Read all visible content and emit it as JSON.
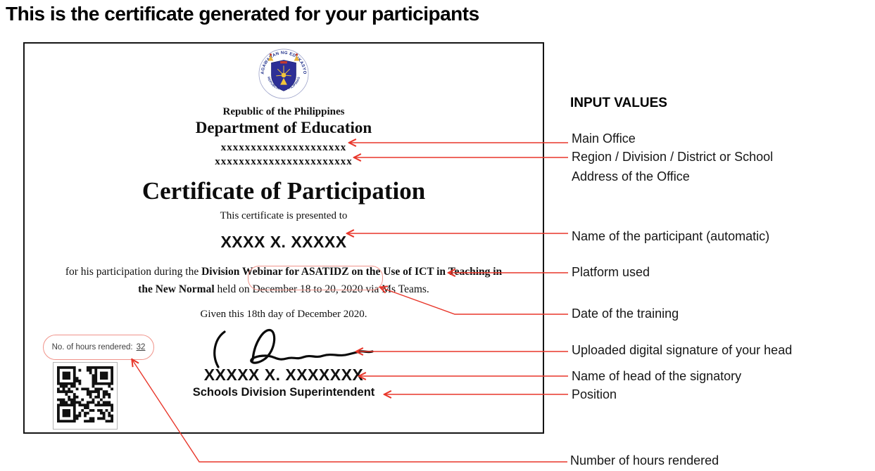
{
  "page": {
    "heading": "This is the certificate generated for your participants"
  },
  "certificate": {
    "seal": {
      "top_text": "KAGAWARAN NG EDUKASYON",
      "bottom_text": "REPUBLIKA NG PILIPINAS"
    },
    "republic_line": "Republic of the Philippines",
    "department_line": "Department of Education",
    "office_placeholder": "xxxxxxxxxxxxxxxxxxxxx",
    "region_placeholder": "xxxxxxxxxxxxxxxxxxxxxxx",
    "title": "Certificate of Participation",
    "presented_line": "This certificate is presented to",
    "participant_name": "XXXX X. XXXXX",
    "body": {
      "line1_normal": "for his participation during the ",
      "line1_bold": "Division Webinar for ASATIDZ on the Use of ICT in Teaching in",
      "line2_bold": "the New Normal",
      "line2_mid": " held on ",
      "date": "December 18 to 20, 2020",
      "line2_end": " via Ms Teams."
    },
    "given_line": "Given this 18th day of December 2020.",
    "signatory": {
      "name": "XXXXX X. XXXXXXX",
      "position": "Schools Division Superintendent"
    },
    "hours": {
      "label": "No. of hours rendered:",
      "value": "32"
    }
  },
  "annotations": {
    "header": "INPUT VALUES",
    "labels": [
      {
        "text": "Main Office"
      },
      {
        "text": "Region / Division / District or School"
      },
      {
        "text": "Address of the Office"
      },
      {
        "text": "Name of the participant (automatic)"
      },
      {
        "text": "Platform used"
      },
      {
        "text": "Date of the training"
      },
      {
        "text": "Uploaded digital signature of your head"
      },
      {
        "text": "Name of head of the signatory"
      },
      {
        "text": "Position"
      },
      {
        "text": "Number of hours rendered"
      }
    ]
  },
  "colors": {
    "arrow_red": "#e8362a",
    "highlight_red": "#f0938a",
    "certificate_border": "#151515",
    "seal_blue": "#2d2f96",
    "seal_gold": "#f3c53a"
  }
}
